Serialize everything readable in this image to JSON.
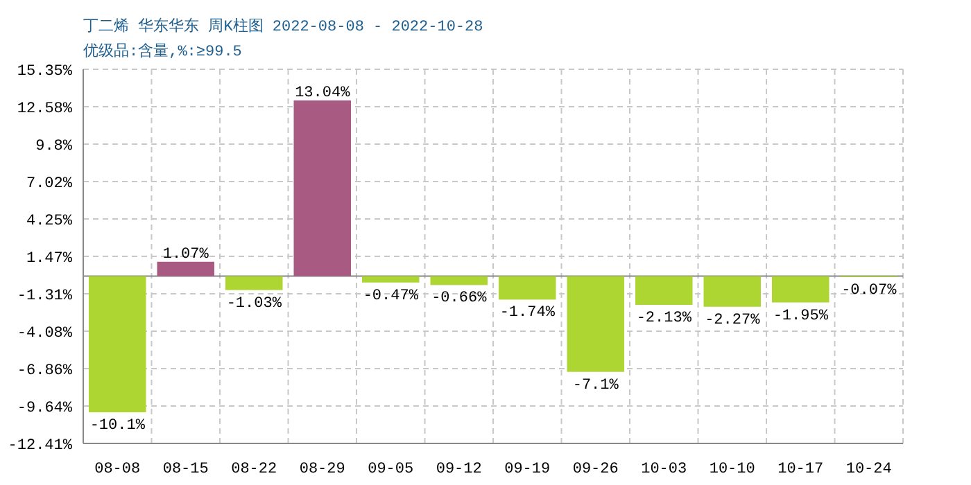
{
  "chart_data": {
    "type": "bar",
    "title": "丁二烯 华东华东 周K柱图 2022-08-08 - 2022-10-28",
    "subtitle": "优级品:含量,%:≥99.5",
    "categories": [
      "08-08",
      "08-15",
      "08-22",
      "08-29",
      "09-05",
      "09-12",
      "09-19",
      "09-26",
      "10-03",
      "10-10",
      "10-17",
      "10-24"
    ],
    "values": [
      -10.1,
      1.07,
      -1.03,
      13.04,
      -0.47,
      -0.66,
      -1.74,
      -7.1,
      -2.13,
      -2.27,
      -1.95,
      -0.07
    ],
    "colors": [
      "#add633",
      "#a95a82",
      "#add633",
      "#a95a82",
      "#add633",
      "#add633",
      "#add633",
      "#add633",
      "#add633",
      "#add633",
      "#add633",
      "#add633"
    ],
    "value_labels": [
      "-10.1%",
      "1.07%",
      "-1.03%",
      "13.04%",
      "-0.47%",
      "-0.66%",
      "-1.74%",
      "-7.1%",
      "-2.13%",
      "-2.27%",
      "-1.95%",
      "-0.07%"
    ],
    "ylim": [
      -12.41,
      15.35
    ],
    "yticks": [
      {
        "value": 15.35,
        "label": "15.35%"
      },
      {
        "value": 12.58,
        "label": "12.58%"
      },
      {
        "value": 9.8,
        "label": "9.8%"
      },
      {
        "value": 7.02,
        "label": "7.02%"
      },
      {
        "value": 4.25,
        "label": "4.25%"
      },
      {
        "value": 1.47,
        "label": "1.47%"
      },
      {
        "value": -1.31,
        "label": "-1.31%"
      },
      {
        "value": -4.08,
        "label": "-4.08%"
      },
      {
        "value": -6.86,
        "label": "-6.86%"
      },
      {
        "value": -9.64,
        "label": "-9.64%"
      },
      {
        "value": -12.41,
        "label": "-12.41%"
      }
    ],
    "ref_lines": [
      {
        "axis": "y",
        "value": 0,
        "color": "#888888"
      }
    ],
    "grid": true
  }
}
